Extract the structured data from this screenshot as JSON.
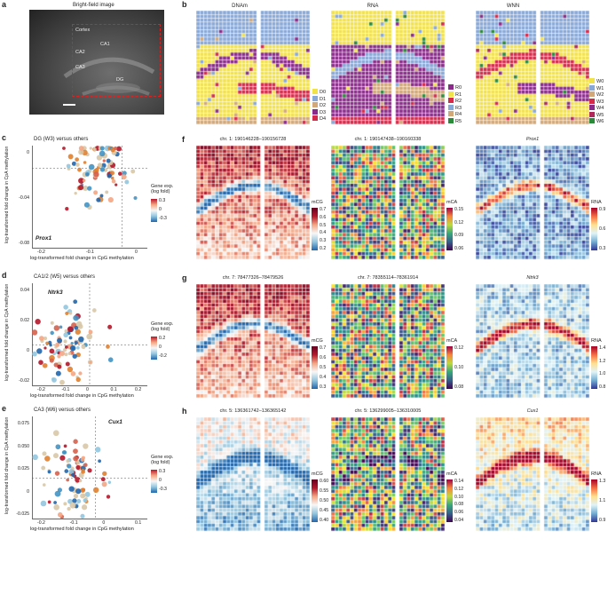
{
  "panel_a": {
    "label": "a",
    "title": "Bright-field image",
    "regions": [
      "Cortex",
      "CA1",
      "CA2",
      "CA3",
      "DG"
    ]
  },
  "panel_b": {
    "label": "b",
    "titles": [
      "DNAm",
      "RNA",
      "WNN"
    ],
    "legends": [
      {
        "items": [
          "D0",
          "D1",
          "D2",
          "D3",
          "D4"
        ],
        "colors": [
          "#f2e24a",
          "#88a8d8",
          "#d2a878",
          "#8a2a8a",
          "#d62a4a"
        ]
      },
      {
        "items": [
          "R0",
          "R1",
          "R2",
          "R3",
          "R4",
          "R5"
        ],
        "colors": [
          "#8a2a8a",
          "#f2e24a",
          "#d62a4a",
          "#88a8d8",
          "#d2a878",
          "#2a8a3a"
        ]
      },
      {
        "items": [
          "W0",
          "W1",
          "W2",
          "W3",
          "W4",
          "W5",
          "W6"
        ],
        "colors": [
          "#f2e24a",
          "#88a8d8",
          "#d2a878",
          "#d62a4a",
          "#8a2a8a",
          "#b0285a",
          "#2a8a3a"
        ]
      }
    ]
  },
  "scatter": [
    {
      "label": "c",
      "title": "DG (W3) versus others",
      "highlight": "Prox1",
      "xlabel": "log-transformed fold change in CpG methylation",
      "ylabel": "log-transformed fold change in CpA methylation",
      "xticks": [
        "-0.2",
        "-0.1",
        "0"
      ],
      "yticks": [
        "0",
        "-0.04",
        "-0.08"
      ],
      "legend_title": "Gene exp. (log fold)",
      "cbar_ticks": [
        "0.3",
        "0",
        "-0.3"
      ]
    },
    {
      "label": "d",
      "title": "CA1/2 (W5) versus others",
      "highlight": "Ntrk3",
      "xlabel": "log-transformed fold change in CpG methylation",
      "ylabel": "log-transformed fold change in CpA methylation",
      "xticks": [
        "-0.2",
        "-0.1",
        "0",
        "0.1",
        "0.2"
      ],
      "yticks": [
        "0.04",
        "0.02",
        "0",
        "-0.02"
      ],
      "legend_title": "Gene exp. (log fold)",
      "cbar_ticks": [
        "0.2",
        "0",
        "-0.2"
      ]
    },
    {
      "label": "e",
      "title": "CA3 (W6) versus others",
      "highlight": "Cux1",
      "xlabel": "log-transformed fold change in CpG methylation",
      "ylabel": "log-transformed fold change in CpA methylation",
      "xticks": [
        "-0.2",
        "-0.1",
        "0",
        "0.1"
      ],
      "yticks": [
        "0.075",
        "0.050",
        "0.025",
        "0",
        "-0.025"
      ],
      "legend_title": "Gene exp. (log fold)",
      "cbar_ticks": [
        "0.3",
        "0",
        "-0.3"
      ]
    }
  ],
  "maps": [
    {
      "label": "f",
      "titles": [
        "chr. 1: 190146228–190156728",
        "chr. 1: 190147438–190160338",
        "Prox1"
      ],
      "scales": [
        {
          "name": "mCG",
          "ticks": [
            "0.7",
            "0.6",
            "0.5",
            "0.4",
            "0.3",
            "0.2"
          ]
        },
        {
          "name": "mCA",
          "ticks": [
            "0.15",
            "0.12",
            "0.09",
            "0.06"
          ]
        },
        {
          "name": "RNA",
          "ticks": [
            "0.9",
            "0.6",
            "0.3"
          ]
        }
      ]
    },
    {
      "label": "g",
      "titles": [
        "chr. 7: 78477326–78479526",
        "chr. 7: 78355114–78361914",
        "Ntrk3"
      ],
      "scales": [
        {
          "name": "mCG",
          "ticks": [
            "0.7",
            "0.6",
            "0.5",
            "0.4",
            "0.3"
          ]
        },
        {
          "name": "mCA",
          "ticks": [
            "0.12",
            "0.10",
            "0.08"
          ]
        },
        {
          "name": "RNA",
          "ticks": [
            "1.4",
            "1.2",
            "1.0",
            "0.8"
          ]
        }
      ]
    },
    {
      "label": "h",
      "titles": [
        "chr. 5: 136361742–136365142",
        "chr. 5: 136299005–136310005",
        "Cux1"
      ],
      "scales": [
        {
          "name": "mCG",
          "ticks": [
            "0.60",
            "0.55",
            "0.50",
            "0.45",
            "0.40"
          ]
        },
        {
          "name": "mCA",
          "ticks": [
            "0.14",
            "0.12",
            "0.10",
            "0.08",
            "0.06",
            "0.04"
          ]
        },
        {
          "name": "RNA",
          "ticks": [
            "1.3",
            "1.1",
            "0.9"
          ]
        }
      ]
    }
  ],
  "colors": {
    "accent_red": "#e02020",
    "brand_blue": "#2b6cb0"
  }
}
